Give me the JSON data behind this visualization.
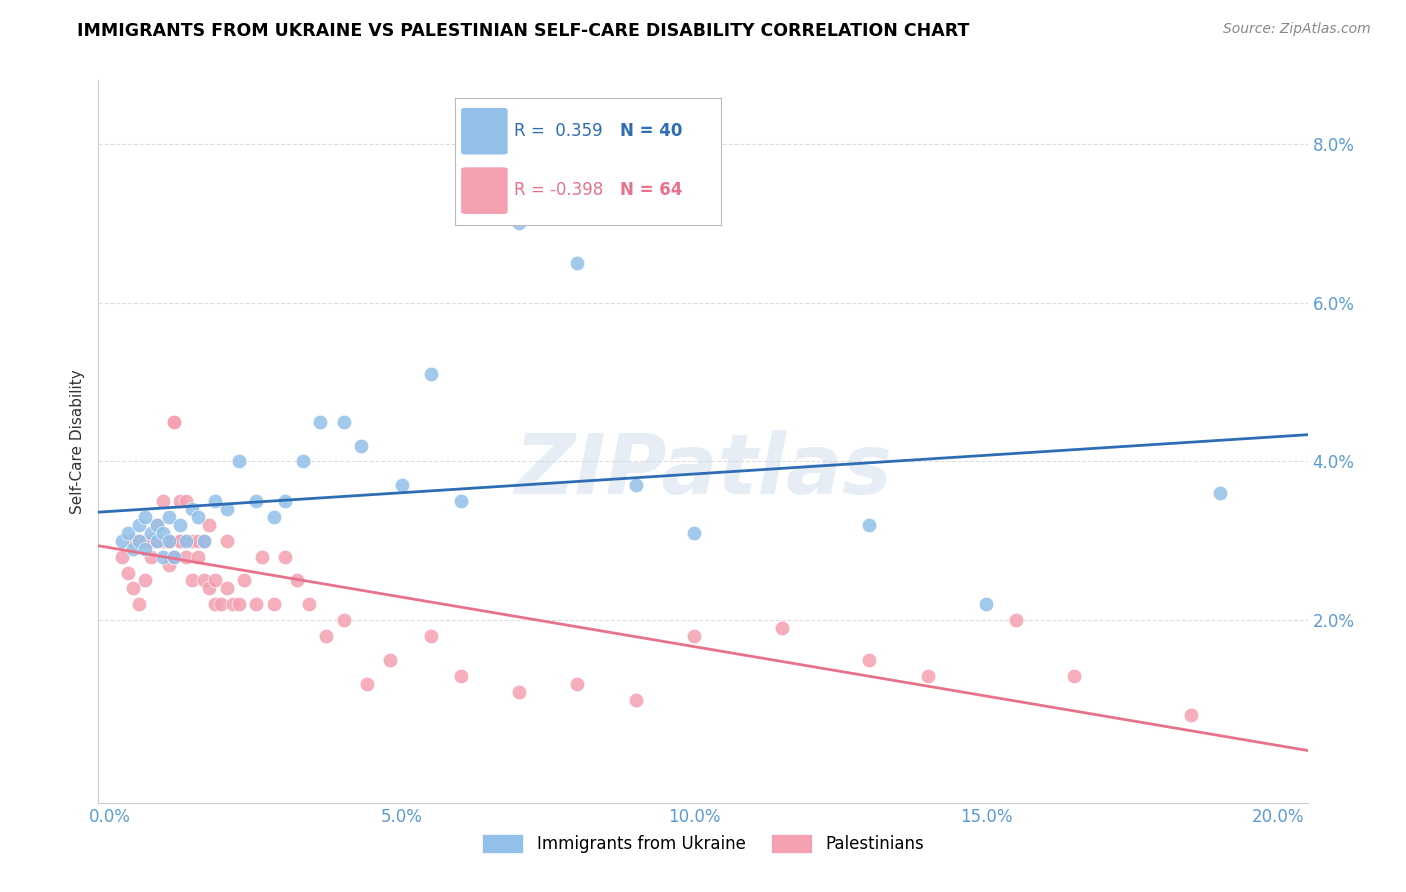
{
  "title": "IMMIGRANTS FROM UKRAINE VS PALESTINIAN SELF-CARE DISABILITY CORRELATION CHART",
  "source": "Source: ZipAtlas.com",
  "ylabel": "Self-Care Disability",
  "xlabel_ticks": [
    "0.0%",
    "5.0%",
    "10.0%",
    "15.0%",
    "20.0%"
  ],
  "xlabel_values": [
    0.0,
    0.05,
    0.1,
    0.15,
    0.2
  ],
  "ylabel_ticks": [
    "2.0%",
    "4.0%",
    "6.0%",
    "8.0%"
  ],
  "ylabel_values": [
    0.02,
    0.04,
    0.06,
    0.08
  ],
  "xlim": [
    -0.002,
    0.205
  ],
  "ylim": [
    -0.003,
    0.088
  ],
  "ukraine_color": "#92C0E8",
  "palestine_color": "#F4A0B0",
  "ukraine_line_color": "#2E6DB4",
  "palestine_line_color": "#E8728A",
  "ukraine_R": "0.359",
  "ukraine_N": "40",
  "palestine_R": "-0.398",
  "palestine_N": "64",
  "watermark": "ZIPatlas",
  "background_color": "#ffffff",
  "grid_color": "#dddddd",
  "ukraine_scatter_x": [
    0.002,
    0.003,
    0.004,
    0.005,
    0.005,
    0.006,
    0.006,
    0.007,
    0.008,
    0.008,
    0.009,
    0.009,
    0.01,
    0.01,
    0.011,
    0.012,
    0.013,
    0.014,
    0.015,
    0.016,
    0.018,
    0.02,
    0.022,
    0.025,
    0.028,
    0.03,
    0.033,
    0.036,
    0.04,
    0.043,
    0.05,
    0.055,
    0.06,
    0.07,
    0.08,
    0.09,
    0.1,
    0.13,
    0.15,
    0.19
  ],
  "ukraine_scatter_y": [
    0.03,
    0.031,
    0.029,
    0.03,
    0.032,
    0.029,
    0.033,
    0.031,
    0.03,
    0.032,
    0.028,
    0.031,
    0.03,
    0.033,
    0.028,
    0.032,
    0.03,
    0.034,
    0.033,
    0.03,
    0.035,
    0.034,
    0.04,
    0.035,
    0.033,
    0.035,
    0.04,
    0.045,
    0.045,
    0.042,
    0.037,
    0.051,
    0.035,
    0.07,
    0.065,
    0.037,
    0.031,
    0.032,
    0.022,
    0.036
  ],
  "palestine_scatter_x": [
    0.002,
    0.003,
    0.004,
    0.004,
    0.005,
    0.005,
    0.006,
    0.006,
    0.007,
    0.007,
    0.008,
    0.008,
    0.009,
    0.009,
    0.01,
    0.01,
    0.01,
    0.01,
    0.011,
    0.011,
    0.011,
    0.012,
    0.012,
    0.012,
    0.013,
    0.013,
    0.014,
    0.014,
    0.015,
    0.015,
    0.016,
    0.016,
    0.017,
    0.017,
    0.018,
    0.018,
    0.019,
    0.02,
    0.02,
    0.021,
    0.022,
    0.023,
    0.025,
    0.026,
    0.028,
    0.03,
    0.032,
    0.034,
    0.037,
    0.04,
    0.044,
    0.048,
    0.055,
    0.06,
    0.07,
    0.08,
    0.09,
    0.1,
    0.115,
    0.13,
    0.14,
    0.155,
    0.165,
    0.185
  ],
  "palestine_scatter_y": [
    0.028,
    0.026,
    0.03,
    0.024,
    0.03,
    0.022,
    0.03,
    0.025,
    0.03,
    0.028,
    0.032,
    0.03,
    0.03,
    0.035,
    0.03,
    0.03,
    0.03,
    0.027,
    0.045,
    0.028,
    0.045,
    0.03,
    0.03,
    0.035,
    0.028,
    0.035,
    0.03,
    0.025,
    0.03,
    0.028,
    0.03,
    0.025,
    0.032,
    0.024,
    0.025,
    0.022,
    0.022,
    0.03,
    0.024,
    0.022,
    0.022,
    0.025,
    0.022,
    0.028,
    0.022,
    0.028,
    0.025,
    0.022,
    0.018,
    0.02,
    0.012,
    0.015,
    0.018,
    0.013,
    0.011,
    0.012,
    0.01,
    0.018,
    0.019,
    0.015,
    0.013,
    0.02,
    0.013,
    0.008
  ]
}
